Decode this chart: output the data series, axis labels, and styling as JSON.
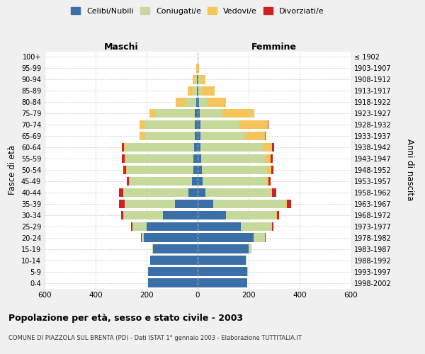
{
  "age_groups": [
    "0-4",
    "5-9",
    "10-14",
    "15-19",
    "20-24",
    "25-29",
    "30-34",
    "35-39",
    "40-44",
    "45-49",
    "50-54",
    "55-59",
    "60-64",
    "65-69",
    "70-74",
    "75-79",
    "80-84",
    "85-89",
    "90-94",
    "95-99",
    "100+"
  ],
  "birth_years": [
    "1998-2002",
    "1993-1997",
    "1988-1992",
    "1983-1987",
    "1978-1982",
    "1973-1977",
    "1968-1972",
    "1963-1967",
    "1958-1962",
    "1953-1957",
    "1948-1952",
    "1943-1947",
    "1938-1942",
    "1933-1937",
    "1928-1932",
    "1923-1927",
    "1918-1922",
    "1913-1917",
    "1908-1912",
    "1903-1907",
    "≤ 1902"
  ],
  "male": {
    "celibi": [
      195,
      195,
      185,
      175,
      210,
      200,
      135,
      90,
      35,
      22,
      18,
      17,
      15,
      12,
      12,
      10,
      5,
      2,
      2,
      0,
      0
    ],
    "coniugati": [
      0,
      0,
      1,
      2,
      10,
      55,
      155,
      195,
      255,
      245,
      260,
      265,
      265,
      195,
      195,
      155,
      45,
      18,
      8,
      3,
      1
    ],
    "vedovi": [
      0,
      0,
      0,
      0,
      0,
      1,
      1,
      2,
      2,
      2,
      3,
      5,
      10,
      20,
      20,
      25,
      35,
      20,
      10,
      2,
      0
    ],
    "divorziati": [
      0,
      0,
      0,
      0,
      2,
      5,
      8,
      20,
      15,
      10,
      10,
      10,
      8,
      2,
      2,
      0,
      0,
      0,
      0,
      0,
      0
    ]
  },
  "female": {
    "nubili": [
      195,
      195,
      190,
      200,
      220,
      170,
      110,
      60,
      30,
      20,
      18,
      15,
      12,
      10,
      10,
      8,
      5,
      2,
      2,
      0,
      0
    ],
    "coniugate": [
      0,
      1,
      2,
      10,
      45,
      120,
      195,
      285,
      255,
      250,
      255,
      250,
      245,
      175,
      155,
      90,
      30,
      15,
      8,
      3,
      1
    ],
    "vedove": [
      0,
      0,
      0,
      0,
      0,
      3,
      5,
      5,
      8,
      8,
      15,
      20,
      35,
      80,
      110,
      125,
      75,
      50,
      20,
      3,
      0
    ],
    "divorziate": [
      0,
      0,
      0,
      0,
      2,
      5,
      10,
      18,
      15,
      8,
      10,
      10,
      8,
      2,
      2,
      0,
      0,
      0,
      0,
      0,
      0
    ]
  },
  "colors": {
    "celibi": "#3B6FA8",
    "coniugati": "#C5D99A",
    "vedovi": "#F5C45A",
    "divorziati": "#CC2222"
  },
  "title": "Popolazione per età, sesso e stato civile - 2003",
  "subtitle": "COMUNE DI PIAZZOLA SUL BRENTA (PD) - Dati ISTAT 1° gennaio 2003 - Elaborazione TUTTITALIA.IT",
  "ylabel_left": "Fasce di età",
  "ylabel_right": "Anni di nascita",
  "xlabel_left": "Maschi",
  "xlabel_right": "Femmine",
  "xlim": 600,
  "bg_color": "#f0f0f0",
  "plot_bg": "#ffffff",
  "legend_labels": [
    "Celibi/Nubili",
    "Coniugati/e",
    "Vedovi/e",
    "Divorziati/e"
  ]
}
